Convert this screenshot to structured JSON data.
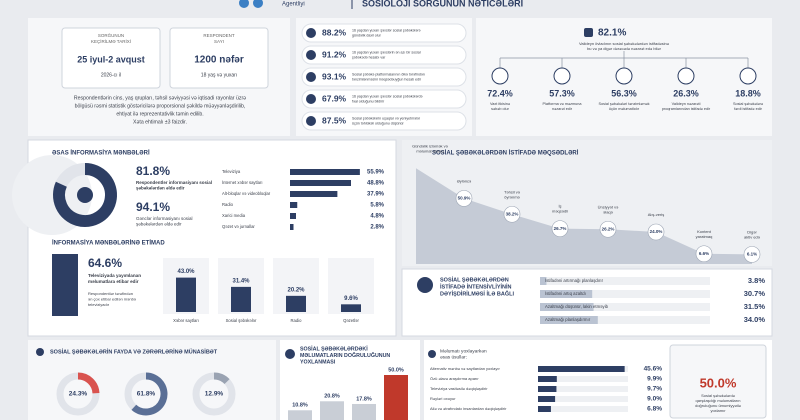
{
  "header": {
    "agency": "Agentliyi",
    "title": "SOSİOLOJİ SORĞUNUN NƏTİCƏLƏRİ"
  },
  "survey": {
    "date_label": [
      "SORĞUNUN",
      "KEÇİRİLMƏ TARİXİ"
    ],
    "date": "25 iyul-2 avqust",
    "year": "2026-cı il",
    "resp_label": [
      "RESPONDENT",
      "SAYI"
    ],
    "resp": "1200 nəfər",
    "resp_note": "18 yaş və yuxarı",
    "note": [
      "Respondentlərin cins, yaş qrupları, təhsil səviyyəsi və iqtisadi rayonlar üzrə",
      "bölgüsü rəsmi statistik göstəricilərə proporsional şəkildə müəyyənləşdirilib,",
      "ehtiyat ilə reprezentativlik təmin edilib.",
      "Xəta ehtimalı ±3 faizdir."
    ]
  },
  "stats": [
    {
      "value": 88.2,
      "label": "88.2%",
      "text": [
        "16 yaşdan yuxarı şəxslər sosial şəbəkələrə",
        "gündəlik daxil olur"
      ]
    },
    {
      "value": 91.2,
      "label": "91.2%",
      "text": [
        "16 yaşdan yuxarı şəxslərin ən azı bir sosial",
        "şəbəkədə hesabı var"
      ]
    },
    {
      "value": 93.1,
      "label": "93.1%",
      "text": [
        "Sosial şəbəkə platformalarının ölkə tərəfindən",
        "tənzimlənməsini məqsədəuyğun hesab edir"
      ]
    },
    {
      "value": 67.9,
      "label": "67.9%",
      "text": [
        "16 yaşdan yuxarı şəxslər sosial şəbəkələrdə",
        "fəal olduğunu bildirir"
      ]
    },
    {
      "value": 87.5,
      "label": "87.5%",
      "text": [
        "Sosial şəbəkələrin uşaqlar və yeniyetmələr",
        "üçün təhlükəli olduğunu düşünür"
      ]
    }
  ],
  "control": {
    "value": 82.1,
    "label": "82.1%",
    "text": [
      "Valideyn övladının sosial şəbəkələrdən istifadəsinə",
      "bu və ya digər dərəcədə nəzarət edə bilər"
    ],
    "items": [
      {
        "value": 72.4,
        "label": "72.4%",
        "text": [
          "Vaxt itkisinə",
          "səbəb olur"
        ]
      },
      {
        "value": 57.3,
        "label": "57.3%",
        "text": [
          "Platforma və məzmuna",
          "nəzarət edir"
        ]
      },
      {
        "value": 56.3,
        "label": "56.3%",
        "text": [
          "Sosial şəbəkələri tənzimləmək",
          "üçün məlumatlıdır"
        ]
      },
      {
        "value": 26.3,
        "label": "26.3%",
        "text": [
          "Valideyn nəzarəti",
          "proqramlarından istifadə edir"
        ]
      },
      {
        "value": 18.8,
        "label": "18.8%",
        "text": [
          "Sosial şəbəkələrə",
          "fərdi istifadə edir"
        ]
      }
    ]
  },
  "sources": {
    "title": "ƏSAS İNFORMASİYA MƏNBƏLƏRİ",
    "main": [
      {
        "value": 81.8,
        "label": "81.8%",
        "text": [
          "Respondentlər informasiyanı sosial",
          "şəbəkələrdən əldə edir"
        ]
      },
      {
        "value": 94.1,
        "label": "94.1%",
        "text": [
          "Gənclər informasiyanı sosial",
          "şəbəkələrdən əldə edir"
        ]
      }
    ],
    "bars": [
      {
        "name": "Televiziya",
        "value": 55.9,
        "label": "55.9%"
      },
      {
        "name": "İnternet xəbər saytları",
        "value": 48.8,
        "label": "48.8%"
      },
      {
        "name": "Alt-bloqlar və videobloqlar",
        "value": 37.9,
        "label": "37.9%"
      },
      {
        "name": "Radio",
        "value": 5.8,
        "label": "5.8%"
      },
      {
        "name": "Xarici media",
        "value": 4.8,
        "label": "4.8%"
      },
      {
        "name": "Qəzet və jurnallar",
        "value": 2.8,
        "label": "2.8%"
      }
    ],
    "trust_title": "İNFORMASİYA MƏNBƏLƏRİNƏ ETİMAD",
    "trust_main": {
      "value": 64.6,
      "label": "64.6%",
      "text": [
        "Televiziyada yayımlanan",
        "məlumatlara etibar edir"
      ],
      "sub": [
        "Respondentlər tərəfindən",
        "ən çox etibar edilən mənbə",
        "televiziyadır"
      ]
    },
    "trust": [
      {
        "name": "Xəbər saytları",
        "value": 43.0,
        "label": "43.0%"
      },
      {
        "name": "Sosial şəbəkələr",
        "value": 31.4,
        "label": "31.4%"
      },
      {
        "name": "Radio",
        "value": 20.2,
        "label": "20.2%"
      },
      {
        "name": "Qəzetlər",
        "value": 9.6,
        "label": "9.6%"
      }
    ]
  },
  "purposes": {
    "title": "SOSİAL ŞƏBƏKƏLƏRDƏN İSTİFADƏ MƏQSƏDLƏRİ",
    "points": [
      {
        "name": [
          "Gündəlik izləmək və",
          "məlumat almaq"
        ],
        "value": 75.0,
        "label": null
      },
      {
        "name": [
          "Əyləncə"
        ],
        "value": 50.9,
        "label": "50.9%"
      },
      {
        "name": [
          "Təhsil və",
          "öyrənmə"
        ],
        "value": 38.2,
        "label": "38.2%"
      },
      {
        "name": [
          "İş",
          "məqsədli"
        ],
        "value": 26.7,
        "label": "26.7%"
      },
      {
        "name": [
          "Ünsiyyət və",
          "əlaqə"
        ],
        "value": 26.2,
        "label": "26.2%"
      },
      {
        "name": [
          "Alış-veriş"
        ],
        "value": 24.0,
        "label": "24.0%"
      },
      {
        "name": [
          "Kontent",
          "yaratmaq"
        ],
        "value": 6.6,
        "label": "6.6%"
      },
      {
        "name": [
          "Digər",
          "aktiv edə"
        ],
        "value": 6.1,
        "label": "6.1%"
      }
    ]
  },
  "intensity": {
    "title": [
      "SOSİAL ŞƏBƏKƏLƏRDƏN",
      "İSTİFADƏ İNTENSİVLİYİNİN",
      "DƏYİŞDİRİLMƏSİ İLƏ BAĞLI"
    ],
    "bars": [
      {
        "name": "İstifadəni artırmağı planlaşdırır",
        "value": 3.8,
        "label": "3.8%"
      },
      {
        "name": "İstifadəni artıq azaltdı",
        "value": 30.7,
        "label": "30.7%"
      },
      {
        "name": "Azaltmağı düşünür, lakin etməyib",
        "value": 31.5,
        "label": "31.5%"
      },
      {
        "name": "Azaltmağı planlaşdırmır",
        "value": 34.0,
        "label": "34.0%"
      }
    ]
  },
  "harm": {
    "title": "SOSİAL ŞƏBƏKƏLƏRİN FAYDA VƏ ZƏRƏRLƏRİNƏ MÜNASİBƏT",
    "donuts": [
      {
        "value": 24.3,
        "label": "24.3%",
        "color": "#d9534f"
      },
      {
        "value": 61.8,
        "label": "61.8%",
        "color": "#5a6f96"
      },
      {
        "value": 12.9,
        "label": "12.9%",
        "color": "#9aa3b2"
      }
    ]
  },
  "verify": {
    "title": [
      "SOSİAL ŞƏBƏKƏLƏRDƏKİ",
      "MƏLUMATLARIN DOĞRULUĞUNUN",
      "YOXLANMASI"
    ],
    "bars": [
      {
        "value": 10.8,
        "label": "10.8%",
        "color": "#c9ced6"
      },
      {
        "value": 20.8,
        "label": "20.8%",
        "color": "#c9ced6"
      },
      {
        "value": 17.8,
        "label": "17.8%",
        "color": "#c9ced6"
      },
      {
        "value": 50.0,
        "label": "50.0%",
        "color": "#c0392b"
      }
    ]
  },
  "methods": {
    "title": [
      "Məlumatı yoxlayarkən",
      "əsas üsullar:"
    ],
    "bars": [
      {
        "name": "Alternativ mənbə və saytlardan yoxlayır",
        "value": 45.6,
        "label": "45.6%"
      },
      {
        "name": "Özü əlavə araşdırma aparır",
        "value": 9.9,
        "label": "9.9%"
      },
      {
        "name": "Televiziya vasitəsilə dəqiqləşdirir",
        "value": 9.7,
        "label": "9.7%"
      },
      {
        "name": "Rəyləri oxuyur",
        "value": 9.0,
        "label": "9.0%"
      },
      {
        "name": "Ailə və ətrafındakı insanlardan dəqiqləşdirir",
        "value": 6.8,
        "label": "6.8%"
      }
    ],
    "card": {
      "value": 50.0,
      "label": "50.0%",
      "text": [
        "Sosial şəbəkələrdə",
        "qarşılaşdığı məlumatların",
        "doğruluğunu ümumiyyətlə",
        "yoxlamır"
      ]
    }
  }
}
